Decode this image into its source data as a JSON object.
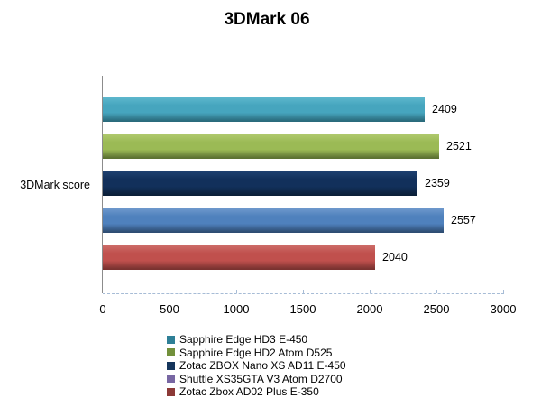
{
  "title": "3DMark 06",
  "category_axis_label": "3DMark score",
  "chart_data": {
    "type": "bar",
    "orientation": "horizontal",
    "title": "3DMark 06",
    "category_axis_label": "3DMark score",
    "xlabel": "",
    "ylabel": "3DMark score",
    "xlim": [
      0,
      3000
    ],
    "xticks": [
      0,
      500,
      1000,
      1500,
      2000,
      2500,
      3000
    ],
    "grid": false,
    "baseline_style": "dashed",
    "legend_position": "bottom",
    "series": [
      {
        "name": "Sapphire Edge HD3 E-450",
        "value": 2409,
        "bar_color": "#46a5be",
        "bar_color_top": "#5db7cd",
        "bar_color_bottom": "#2a6b7c",
        "legend_color": "#2e7f96"
      },
      {
        "name": "Sapphire Edge HD2 Atom D525",
        "value": 2521,
        "bar_color": "#9bba55",
        "bar_color_top": "#afc96d",
        "bar_color_bottom": "#5c7233",
        "legend_color": "#72903b"
      },
      {
        "name": "Zotac ZBOX Nano XS AD11 E-450",
        "value": 2359,
        "bar_color": "#12305b",
        "bar_color_top": "#1e4070",
        "bar_color_bottom": "#0b1f38",
        "legend_color": "#15355c"
      },
      {
        "name": "Shuttle XS35GTA V3 Atom D2700",
        "value": 2557,
        "bar_color": "#4f81bd",
        "bar_color_top": "#6e98cc",
        "bar_color_bottom": "#2e4d73",
        "legend_color": "#7867a3"
      },
      {
        "name": "Zotac Zbox AD02 Plus E-350",
        "value": 2040,
        "bar_color": "#c0504d",
        "bar_color_top": "#cd6c68",
        "bar_color_bottom": "#7a3230",
        "legend_color": "#8c3937"
      }
    ]
  },
  "colors": {
    "axis_line": "#8c8c8c",
    "baseline_dash": "#a7bcd6",
    "text": "#000000",
    "background": "#ffffff"
  }
}
